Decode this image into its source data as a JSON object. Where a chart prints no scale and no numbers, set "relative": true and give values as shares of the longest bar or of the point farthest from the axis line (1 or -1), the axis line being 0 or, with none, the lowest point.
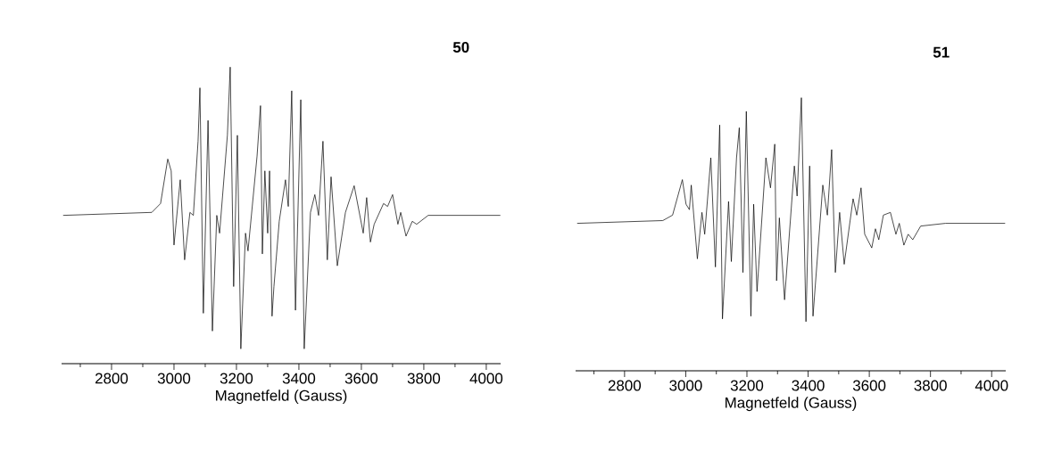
{
  "chart_data": [
    {
      "type": "line",
      "title": "50",
      "xlabel": "Magnetfeld (Gauss)",
      "relative": true,
      "tick_labels": "x",
      "color": "#000000",
      "xlim": [
        2640,
        4046
      ],
      "xticks": [
        {
          "value": 2700,
          "label": null
        },
        2800,
        {
          "value": 2900,
          "label": null
        },
        3000,
        {
          "value": 3100,
          "label": null
        },
        3200,
        {
          "value": 3300,
          "label": null
        },
        3400,
        {
          "value": 3500,
          "label": null
        },
        3600,
        {
          "value": 3700,
          "label": null
        },
        3800,
        {
          "value": 3900,
          "label": null
        },
        4000
      ],
      "x": [
        2645,
        2929,
        2957,
        2980,
        2991,
        3000,
        3020,
        3034,
        3051,
        3062,
        3077,
        3083,
        3094,
        3109,
        3123,
        3137,
        3146,
        3171,
        3180,
        3191,
        3203,
        3214,
        3229,
        3237,
        3266,
        3277,
        3283,
        3291,
        3300,
        3306,
        3314,
        3320,
        3337,
        3357,
        3366,
        3377,
        3389,
        3406,
        3417,
        3437,
        3451,
        3463,
        3477,
        3491,
        3503,
        3523,
        3549,
        3577,
        3606,
        3617,
        3629,
        3641,
        3671,
        3684,
        3700,
        3717,
        3726,
        3743,
        3763,
        3777,
        3814,
        3857,
        4045
      ],
      "values": [
        0.5,
        0.51,
        0.54,
        0.69,
        0.65,
        0.4,
        0.62,
        0.35,
        0.51,
        0.5,
        0.75,
        0.93,
        0.17,
        0.82,
        0.11,
        0.5,
        0.44,
        0.77,
        1.0,
        0.26,
        0.77,
        0.05,
        0.44,
        0.38,
        0.7,
        0.87,
        0.37,
        0.65,
        0.44,
        0.65,
        0.16,
        0.26,
        0.48,
        0.62,
        0.53,
        0.92,
        0.18,
        0.89,
        0.05,
        0.51,
        0.57,
        0.5,
        0.75,
        0.35,
        0.63,
        0.33,
        0.51,
        0.6,
        0.44,
        0.56,
        0.41,
        0.47,
        0.54,
        0.53,
        0.57,
        0.47,
        0.51,
        0.43,
        0.48,
        0.47,
        0.5,
        0.5,
        0.5
      ]
    },
    {
      "type": "line",
      "title": "51",
      "xlabel": "Magnetfeld (Gauss)",
      "relative": true,
      "tick_labels": "x",
      "color": "#000000",
      "xlim": [
        2640,
        4046
      ],
      "xticks": [
        {
          "value": 2700,
          "label": null
        },
        2800,
        {
          "value": 2900,
          "label": null
        },
        3000,
        {
          "value": 3100,
          "label": null
        },
        3200,
        {
          "value": 3300,
          "label": null
        },
        3400,
        {
          "value": 3500,
          "label": null
        },
        3600,
        {
          "value": 3700,
          "label": null
        },
        3800,
        {
          "value": 3900,
          "label": null
        },
        4000
      ],
      "x": [
        2645,
        2925,
        2957,
        2989,
        3001,
        3012,
        3018,
        3038,
        3053,
        3062,
        3082,
        3097,
        3111,
        3120,
        3140,
        3149,
        3166,
        3175,
        3187,
        3198,
        3213,
        3222,
        3233,
        3262,
        3277,
        3291,
        3297,
        3306,
        3323,
        3355,
        3364,
        3378,
        3393,
        3405,
        3416,
        3448,
        3463,
        3477,
        3489,
        3503,
        3518,
        3547,
        3559,
        3573,
        3585,
        3608,
        3620,
        3631,
        3646,
        3669,
        3687,
        3698,
        3713,
        3727,
        3742,
        3768,
        3849,
        4044
      ],
      "values": [
        0.54,
        0.55,
        0.57,
        0.7,
        0.61,
        0.59,
        0.68,
        0.41,
        0.58,
        0.5,
        0.78,
        0.38,
        0.9,
        0.19,
        0.62,
        0.4,
        0.78,
        0.89,
        0.36,
        0.95,
        0.2,
        0.61,
        0.29,
        0.78,
        0.67,
        0.83,
        0.33,
        0.56,
        0.26,
        0.75,
        0.64,
        1.0,
        0.18,
        0.75,
        0.2,
        0.68,
        0.57,
        0.81,
        0.36,
        0.58,
        0.39,
        0.63,
        0.57,
        0.67,
        0.5,
        0.45,
        0.52,
        0.48,
        0.57,
        0.58,
        0.5,
        0.54,
        0.46,
        0.5,
        0.48,
        0.53,
        0.54,
        0.54
      ]
    }
  ]
}
